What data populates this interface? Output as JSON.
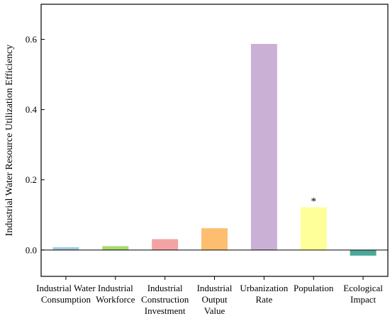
{
  "chart_data": {
    "type": "bar",
    "ylabel": "Industrial Water Resource Utilization Efficiency",
    "xlabel": "",
    "ylim": [
      -0.075,
      0.7
    ],
    "yticks": [
      0.0,
      0.2,
      0.4,
      0.6
    ],
    "ytick_labels": [
      "0.0",
      "0.2",
      "0.4",
      "0.6"
    ],
    "zero_line": true,
    "grid": false,
    "categories": [
      {
        "label_lines": [
          "Industrial Water",
          "Consumption"
        ],
        "value": 0.008,
        "color": "#9ecae1"
      },
      {
        "label_lines": [
          "Industrial",
          "Workforce"
        ],
        "value": 0.011,
        "color": "#a6d96a"
      },
      {
        "label_lines": [
          "Industrial",
          "Construction",
          "Investment"
        ],
        "value": 0.031,
        "color": "#f4a3a3"
      },
      {
        "label_lines": [
          "Industrial",
          "Output",
          "Value"
        ],
        "value": 0.062,
        "color": "#fdbf6f"
      },
      {
        "label_lines": [
          "Urbanization",
          "Rate"
        ],
        "value": 0.587,
        "color": "#cbb0d6"
      },
      {
        "label_lines": [
          "Population"
        ],
        "value": 0.122,
        "color": "#ffff99",
        "annotation": "*"
      },
      {
        "label_lines": [
          "Ecological",
          "Impact"
        ],
        "value": -0.016,
        "color": "#4aa99a"
      }
    ]
  }
}
